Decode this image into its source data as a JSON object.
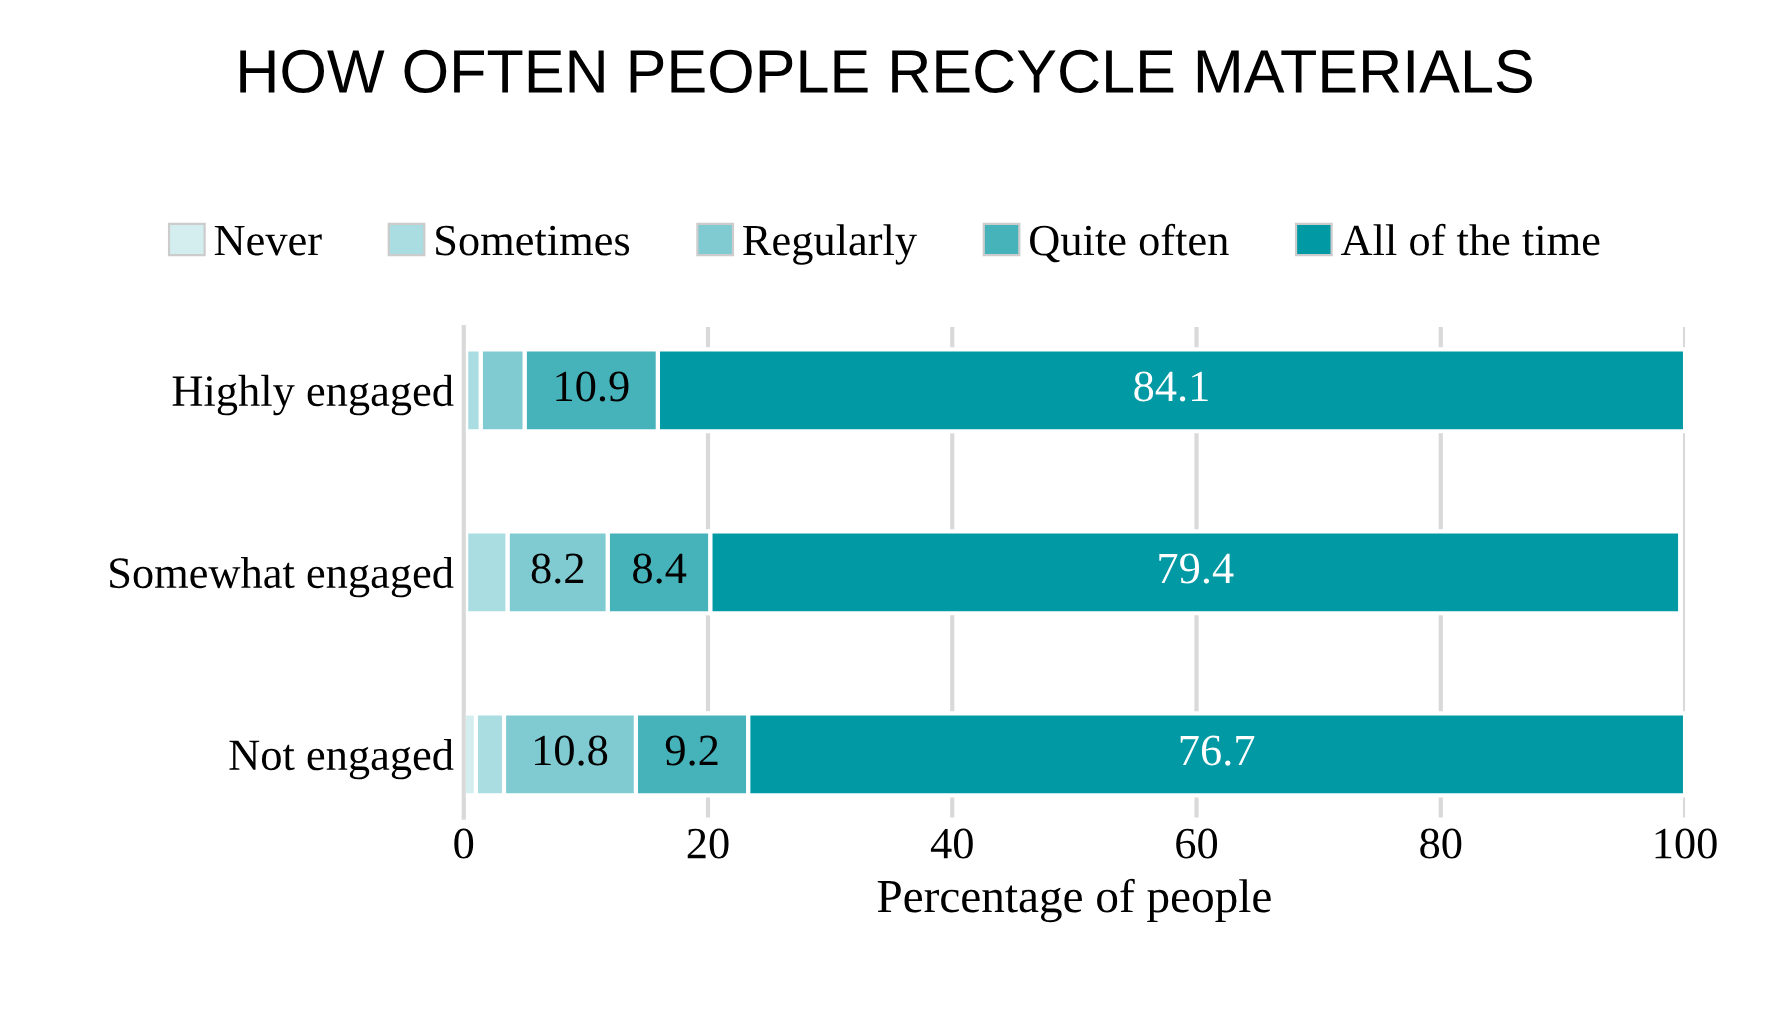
{
  "chart_data": {
    "type": "bar",
    "orientation": "horizontal",
    "stacked": true,
    "title": "HOW OFTEN PEOPLE RECYCLE MATERIALS",
    "xlabel": "Percentage of people",
    "categories": [
      "Highly engaged",
      "Somewhat engaged",
      "Not engaged"
    ],
    "series": [
      {
        "name": "Never",
        "color": "#d4eef0",
        "values": [
          0.2,
          0.2,
          1.0
        ],
        "value_labels": [
          null,
          null,
          null
        ]
      },
      {
        "name": "Sometimes",
        "color": "#a9dde1",
        "values": [
          1.2,
          3.4,
          2.3
        ],
        "value_labels": [
          null,
          null,
          null
        ]
      },
      {
        "name": "Regularly",
        "color": "#7fcbd1",
        "values": [
          3.6,
          8.2,
          10.8
        ],
        "value_labels": [
          null,
          "8.2",
          "10.8"
        ]
      },
      {
        "name": "Quite often",
        "color": "#46b3bb",
        "values": [
          10.9,
          8.4,
          9.2
        ],
        "value_labels": [
          "10.9",
          "8.4",
          "9.2"
        ]
      },
      {
        "name": "All of the time",
        "color": "#0099a4",
        "values": [
          84.1,
          79.4,
          76.7
        ],
        "value_labels": [
          "84.1",
          "79.4",
          "76.7"
        ]
      }
    ],
    "xlim": [
      0,
      100
    ],
    "xticks": [
      0,
      20,
      40,
      60,
      80,
      100
    ],
    "grid": "x",
    "legend": "top"
  }
}
